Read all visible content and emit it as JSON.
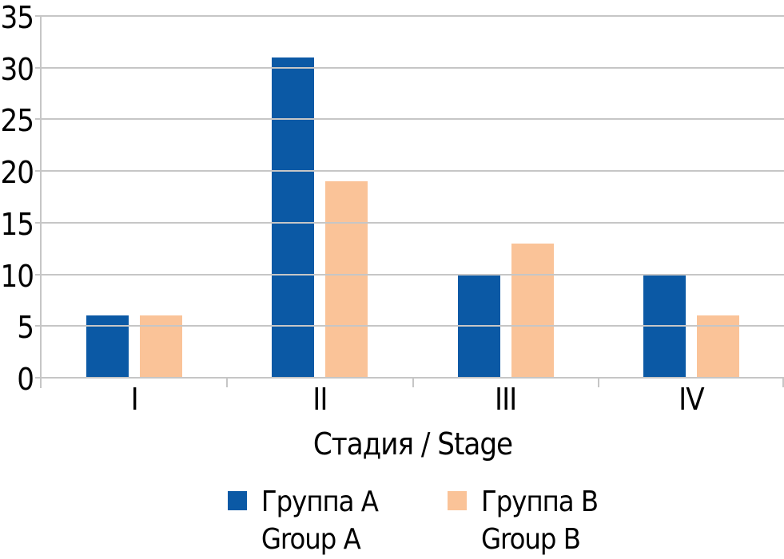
{
  "chart_data": {
    "type": "bar",
    "categories": [
      "I",
      "II",
      "III",
      "IV"
    ],
    "series": [
      {
        "label_ru": "Группа А",
        "label_en": "Group A",
        "color": "#0b59a5",
        "values": [
          6,
          31,
          10,
          10
        ]
      },
      {
        "label_ru": "Группа B",
        "label_en": "Group B",
        "color": "#fac398",
        "values": [
          6,
          19,
          13,
          6
        ]
      }
    ],
    "title": "",
    "xlabel": "Стадия / Stage",
    "ylabel": "",
    "ylim": [
      0,
      35
    ],
    "ytick_step": 5,
    "yticks": [
      0,
      5,
      10,
      15,
      20,
      25,
      30,
      35
    ],
    "grid": true,
    "legend_position": "bottom"
  },
  "style": {
    "grid_color": "#c6c6c6",
    "text_color": "#000000",
    "background_color": "#ffffff"
  }
}
